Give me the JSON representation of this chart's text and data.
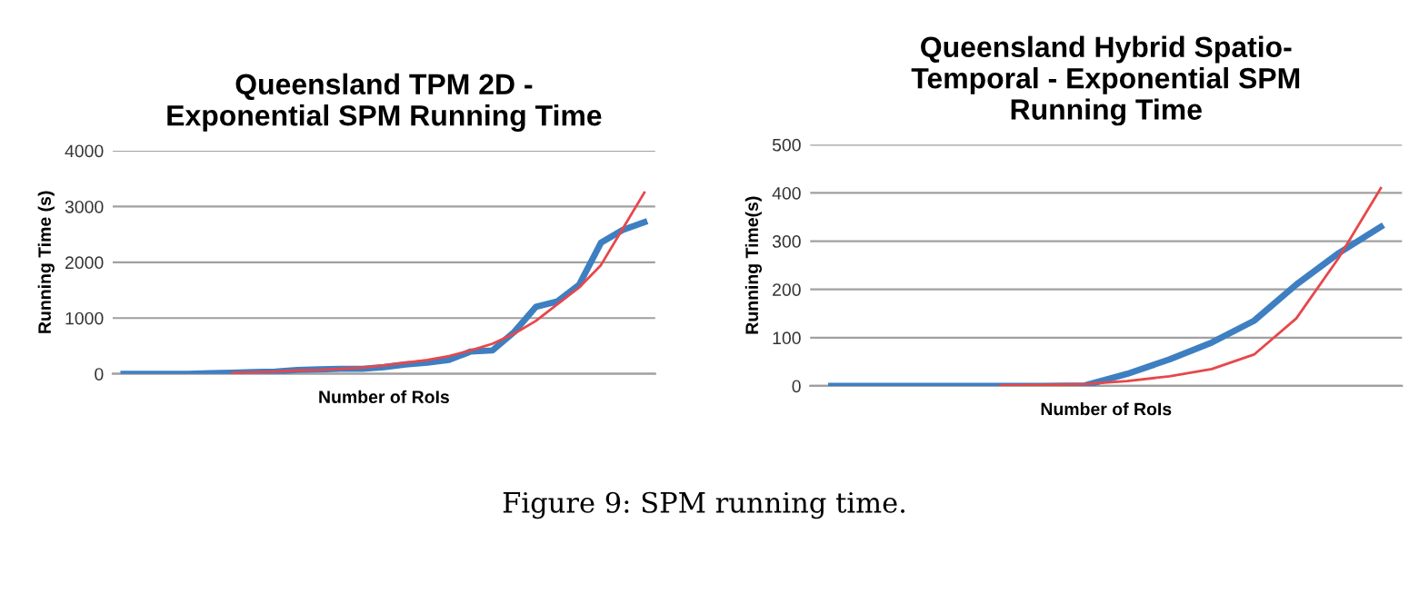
{
  "chart_data": [
    {
      "type": "line",
      "title": "Queensland TPM 2D -\nExponential SPM Running Time",
      "xlabel": "Number of RoIs",
      "ylabel": "Running Time (s)",
      "categories": [
        null,
        null,
        null,
        null,
        null,
        null,
        null,
        null,
        null,
        null,
        null,
        null,
        null,
        null,
        null,
        null,
        null,
        null,
        null,
        null,
        null,
        null,
        null,
        null,
        null
      ],
      "series": [
        {
          "color": "#3e7fc1",
          "values": [
            0,
            0,
            0,
            0,
            10,
            20,
            30,
            40,
            70,
            80,
            90,
            90,
            120,
            170,
            200,
            250,
            400,
            420,
            750,
            1200,
            1300,
            1600,
            2350,
            2580,
            2720
          ]
        },
        {
          "color": "#e8474a",
          "values": [
            null,
            null,
            null,
            null,
            null,
            20,
            30,
            40,
            60,
            70,
            90,
            110,
            150,
            200,
            250,
            320,
            420,
            540,
            720,
            950,
            1250,
            1550,
            1950,
            2600,
            3250
          ]
        }
      ],
      "ylim": [
        0,
        4000
      ],
      "yticks": [
        0,
        1000,
        2000,
        3000,
        4000
      ],
      "grid": "y",
      "marker": "none",
      "line_style": "solid",
      "annotations": [
        "Figure 9: SPM running time."
      ]
    },
    {
      "type": "line",
      "title": "Queensland Hybrid Spatio-\nTemporal - Exponential SPM\nRunning Time",
      "xlabel": "Number of RoIs",
      "ylabel": "Running Time(s)",
      "categories": [
        null,
        null,
        null,
        null,
        null,
        null,
        null,
        null,
        null,
        null,
        null,
        null,
        null,
        null
      ],
      "series": [
        {
          "color": "#3e7fc1",
          "values": [
            0,
            0,
            0,
            0,
            0,
            0,
            1,
            25,
            55,
            90,
            135,
            210,
            275,
            330
          ]
        },
        {
          "color": "#e8474a",
          "values": [
            null,
            null,
            null,
            null,
            1,
            2,
            4,
            10,
            20,
            35,
            65,
            140,
            265,
            410
          ]
        }
      ],
      "ylim": [
        0,
        500
      ],
      "yticks": [
        0,
        100,
        200,
        300,
        400,
        500
      ],
      "grid": "y",
      "marker": "none",
      "line_style": "solid"
    }
  ]
}
